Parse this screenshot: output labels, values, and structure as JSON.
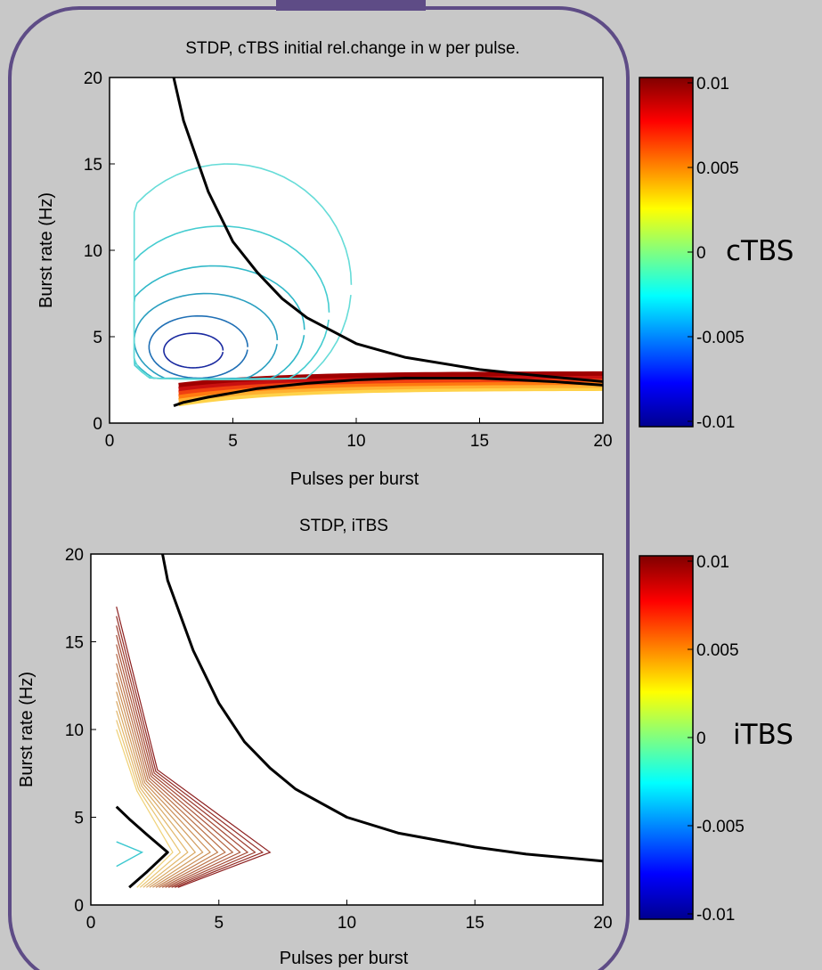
{
  "chart_data": [
    {
      "type": "contour",
      "title": "STDP, cTBS initial rel.change in w per pulse.",
      "xlabel": "Pulses per burst",
      "ylabel": "Burst rate (Hz)",
      "xlim": [
        0,
        20
      ],
      "ylim": [
        0,
        20
      ],
      "xticks": [
        "0",
        "5",
        "10",
        "15",
        "20"
      ],
      "yticks": [
        "0",
        "5",
        "10",
        "15",
        "20"
      ],
      "side_label": "cTBS",
      "colorbar": {
        "colormap": "jet",
        "limits": [
          -0.01,
          0.01
        ],
        "ticks": [
          "0.01",
          "0.005",
          "0",
          "-0.005",
          "-0.01"
        ]
      },
      "zero_contours": [
        {
          "x": [
            2.6,
            3,
            4,
            5,
            6,
            7,
            8,
            10,
            12,
            15,
            17,
            20
          ],
          "y": [
            20,
            17.5,
            13.4,
            10.5,
            8.7,
            7.2,
            6.1,
            4.6,
            3.8,
            3.1,
            2.8,
            2.4
          ]
        },
        {
          "x": [
            2.6,
            3,
            4,
            6,
            8,
            10,
            12,
            15,
            18,
            20
          ],
          "y": [
            1.0,
            1.2,
            1.5,
            2.0,
            2.3,
            2.5,
            2.6,
            2.6,
            2.4,
            2.2
          ]
        }
      ]
    },
    {
      "type": "contour",
      "title": "STDP, iTBS",
      "xlabel": "Pulses per burst",
      "ylabel": "Burst rate (Hz)",
      "xlim": [
        0,
        20
      ],
      "ylim": [
        0,
        20
      ],
      "xticks": [
        "0",
        "5",
        "10",
        "15",
        "20"
      ],
      "yticks": [
        "0",
        "5",
        "10",
        "15",
        "20"
      ],
      "side_label": "iTBS",
      "colorbar": {
        "colormap": "jet",
        "limits": [
          -0.01,
          0.01
        ],
        "ticks": [
          "0.01",
          "0.005",
          "0",
          "-0.005",
          "-0.01"
        ]
      },
      "zero_contours": [
        {
          "x": [
            2.8,
            3,
            4,
            5,
            6,
            7,
            8,
            10,
            12,
            15,
            17,
            20
          ],
          "y": [
            20,
            18.5,
            14.5,
            11.5,
            9.3,
            7.8,
            6.6,
            5.0,
            4.1,
            3.3,
            2.9,
            2.5
          ]
        },
        {
          "x": [
            1.0,
            1.5,
            2.2,
            3.0,
            2.2,
            1.5
          ],
          "y": [
            5.6,
            4.9,
            4.0,
            3.0,
            1.9,
            1.0
          ]
        }
      ]
    }
  ]
}
